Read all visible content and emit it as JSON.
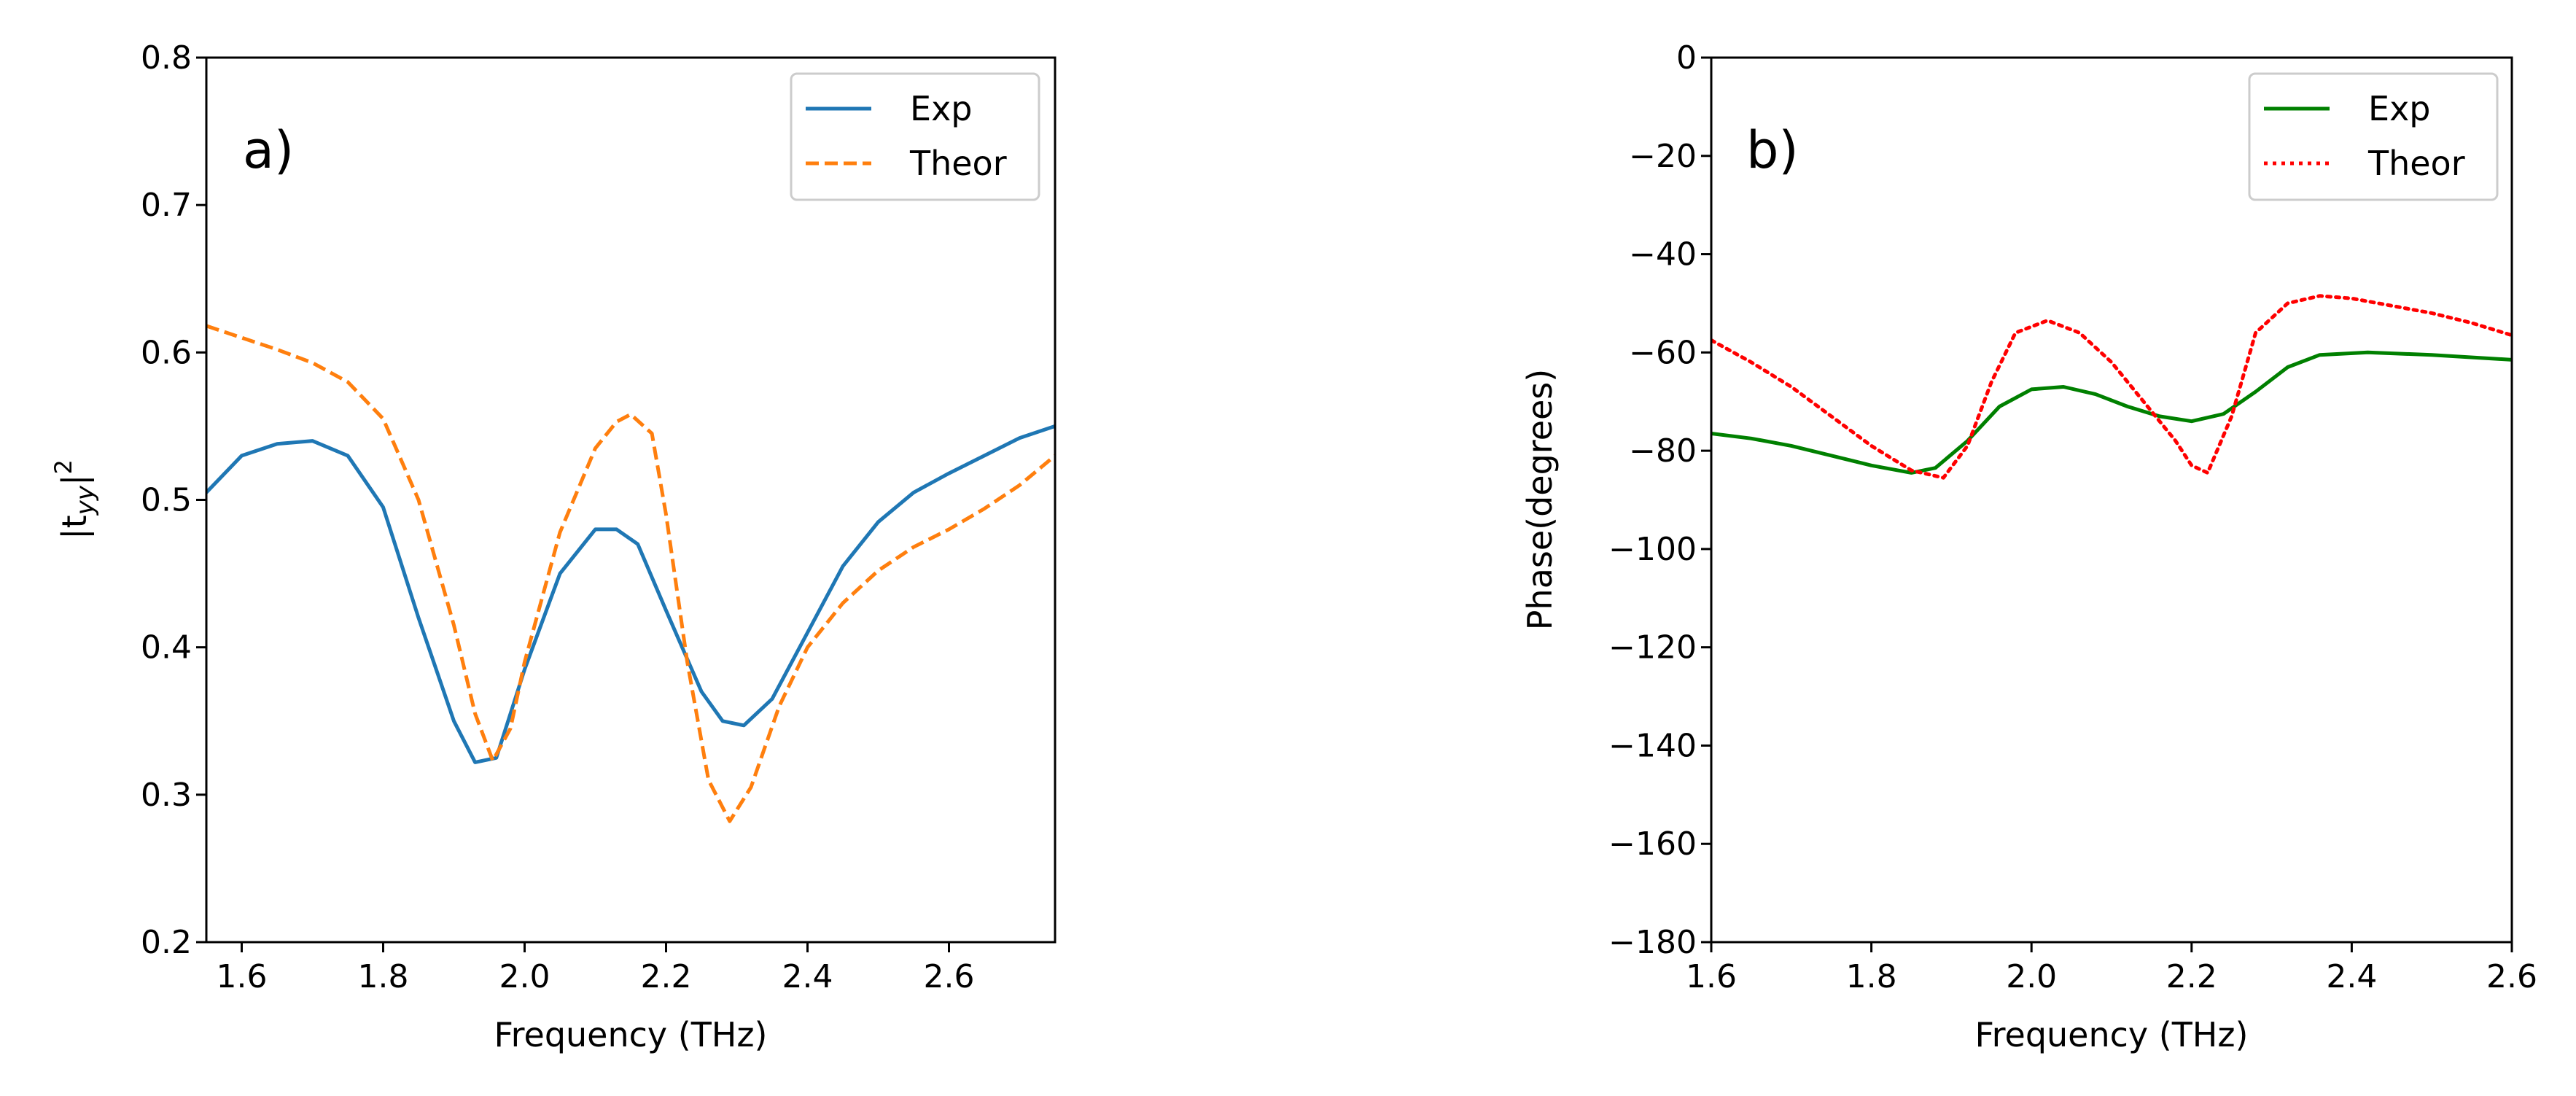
{
  "chart_data": [
    {
      "type": "line",
      "panel_label": "a)",
      "xlabel": "Frequency (THz)",
      "ylabel_prefix": "|t",
      "ylabel_sub": "yy",
      "ylabel_suffix": "|",
      "ylabel_sup": "2",
      "xlim": [
        1.55,
        2.75
      ],
      "ylim": [
        0.2,
        0.8
      ],
      "xticks": [
        1.6,
        1.8,
        2.0,
        2.2,
        2.4,
        2.6
      ],
      "xtick_labels": [
        "1.6",
        "1.8",
        "2.0",
        "2.2",
        "2.4",
        "2.6"
      ],
      "yticks": [
        0.2,
        0.3,
        0.4,
        0.5,
        0.6,
        0.7,
        0.8
      ],
      "ytick_labels": [
        "0.2",
        "0.3",
        "0.4",
        "0.5",
        "0.6",
        "0.7",
        "0.8"
      ],
      "legend_position": "top-right",
      "series": [
        {
          "name": "Exp",
          "color": "#1f77b4",
          "style": "solid",
          "x": [
            1.55,
            1.6,
            1.65,
            1.7,
            1.75,
            1.8,
            1.85,
            1.9,
            1.93,
            1.96,
            2.0,
            2.05,
            2.1,
            2.13,
            2.16,
            2.2,
            2.25,
            2.28,
            2.31,
            2.35,
            2.4,
            2.45,
            2.5,
            2.55,
            2.6,
            2.65,
            2.7,
            2.75
          ],
          "y": [
            0.505,
            0.53,
            0.538,
            0.54,
            0.53,
            0.495,
            0.42,
            0.35,
            0.322,
            0.325,
            0.385,
            0.45,
            0.48,
            0.48,
            0.47,
            0.425,
            0.37,
            0.35,
            0.347,
            0.365,
            0.41,
            0.455,
            0.485,
            0.505,
            0.518,
            0.53,
            0.542,
            0.55
          ]
        },
        {
          "name": "Theor",
          "color": "#ff7f0e",
          "style": "dashed",
          "x": [
            1.55,
            1.6,
            1.65,
            1.7,
            1.75,
            1.8,
            1.85,
            1.9,
            1.93,
            1.955,
            1.98,
            2.0,
            2.05,
            2.1,
            2.13,
            2.15,
            2.18,
            2.2,
            2.23,
            2.26,
            2.29,
            2.32,
            2.36,
            2.4,
            2.45,
            2.5,
            2.55,
            2.6,
            2.65,
            2.7,
            2.75
          ],
          "y": [
            0.618,
            0.61,
            0.602,
            0.593,
            0.58,
            0.555,
            0.5,
            0.415,
            0.355,
            0.323,
            0.345,
            0.39,
            0.478,
            0.535,
            0.553,
            0.558,
            0.545,
            0.49,
            0.39,
            0.31,
            0.282,
            0.305,
            0.36,
            0.4,
            0.43,
            0.452,
            0.468,
            0.48,
            0.494,
            0.51,
            0.53
          ]
        }
      ]
    },
    {
      "type": "line",
      "panel_label": "b)",
      "xlabel": "Frequency (THz)",
      "ylabel": "Phase(degrees)",
      "xlim": [
        1.6,
        2.6
      ],
      "ylim": [
        -180,
        0
      ],
      "xticks": [
        1.6,
        1.8,
        2.0,
        2.2,
        2.4,
        2.6
      ],
      "xtick_labels": [
        "1.6",
        "1.8",
        "2.0",
        "2.2",
        "2.4",
        "2.6"
      ],
      "yticks": [
        0,
        -20,
        -40,
        -60,
        -80,
        -100,
        -120,
        -140,
        -160,
        -180
      ],
      "ytick_labels": [
        "0",
        "−20",
        "−40",
        "−60",
        "−80",
        "−100",
        "−120",
        "−140",
        "−160",
        "−180"
      ],
      "legend_position": "top-right",
      "series": [
        {
          "name": "Exp",
          "color": "#008000",
          "style": "solid",
          "x": [
            1.6,
            1.65,
            1.7,
            1.75,
            1.8,
            1.85,
            1.88,
            1.92,
            1.96,
            2.0,
            2.04,
            2.08,
            2.12,
            2.16,
            2.2,
            2.24,
            2.28,
            2.32,
            2.36,
            2.42,
            2.5,
            2.6
          ],
          "y": [
            -76.5,
            -77.5,
            -79,
            -81,
            -83,
            -84.5,
            -83.5,
            -78,
            -71,
            -67.5,
            -67,
            -68.5,
            -71,
            -73,
            -74,
            -72.5,
            -68,
            -63,
            -60.5,
            -60,
            -60.5,
            -61.5
          ]
        },
        {
          "name": "Theor",
          "color": "#ff0000",
          "style": "dotted",
          "x": [
            1.6,
            1.65,
            1.7,
            1.75,
            1.8,
            1.85,
            1.89,
            1.92,
            1.95,
            1.98,
            2.02,
            2.06,
            2.1,
            2.14,
            2.18,
            2.2,
            2.22,
            2.25,
            2.28,
            2.32,
            2.36,
            2.4,
            2.45,
            2.5,
            2.55,
            2.6
          ],
          "y": [
            -57.5,
            -62,
            -67,
            -73,
            -79,
            -84,
            -85.5,
            -79,
            -66,
            -56,
            -53.5,
            -56,
            -62,
            -70,
            -78,
            -83,
            -84.5,
            -73,
            -56,
            -50,
            -48.5,
            -49,
            -50.5,
            -52,
            -54,
            -56.5
          ]
        }
      ]
    }
  ]
}
